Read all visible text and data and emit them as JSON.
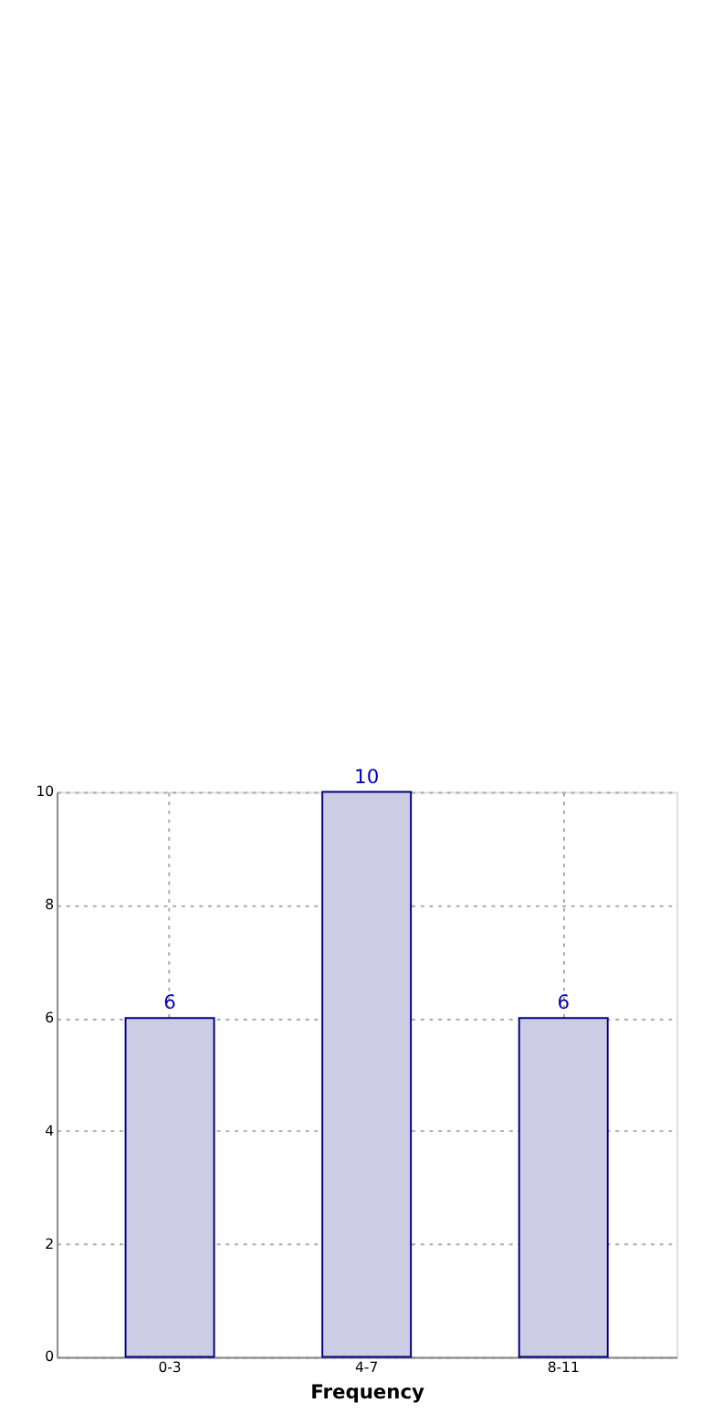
{
  "chart_data": {
    "type": "bar",
    "xlabel": "Frequency",
    "categories": [
      "0-3",
      "4-7",
      "8-11"
    ],
    "values": [
      6,
      10,
      6
    ],
    "color": "#ccccE5",
    "ylim": [
      0,
      10
    ],
    "yticks": [
      0,
      2,
      4,
      6,
      8,
      10
    ],
    "grid": true,
    "data_labels": true
  }
}
